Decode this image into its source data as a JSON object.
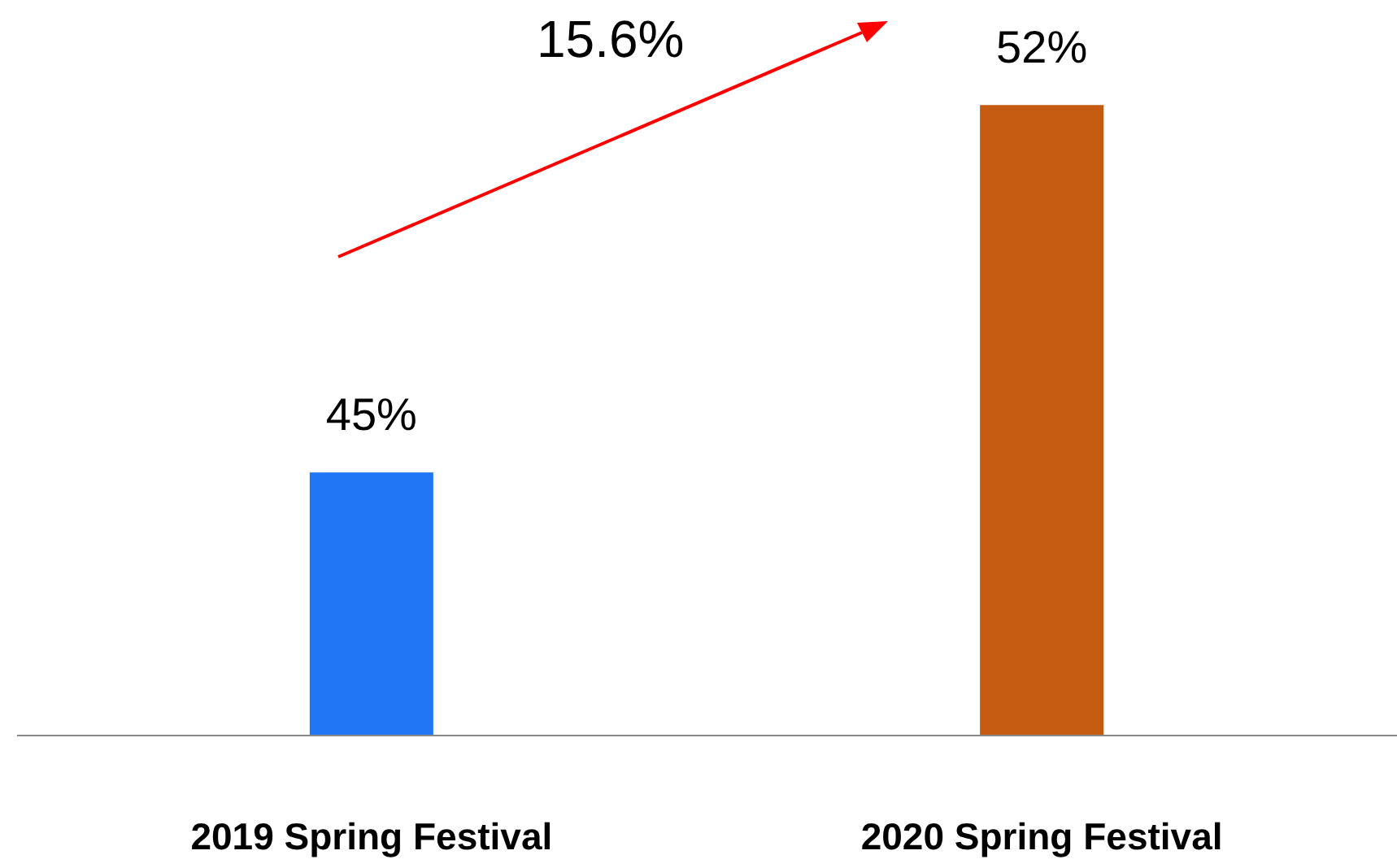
{
  "chart_data": {
    "type": "bar",
    "categories": [
      "2019 Spring Festival",
      "2020 Spring Festival"
    ],
    "values": [
      45,
      52
    ],
    "colors": [
      "#2176f5",
      "#c55a11"
    ],
    "ylim": [
      40,
      54
    ],
    "value_labels": [
      "45%",
      "52%"
    ],
    "annotations": [
      "15.6%"
    ],
    "grid": false
  }
}
